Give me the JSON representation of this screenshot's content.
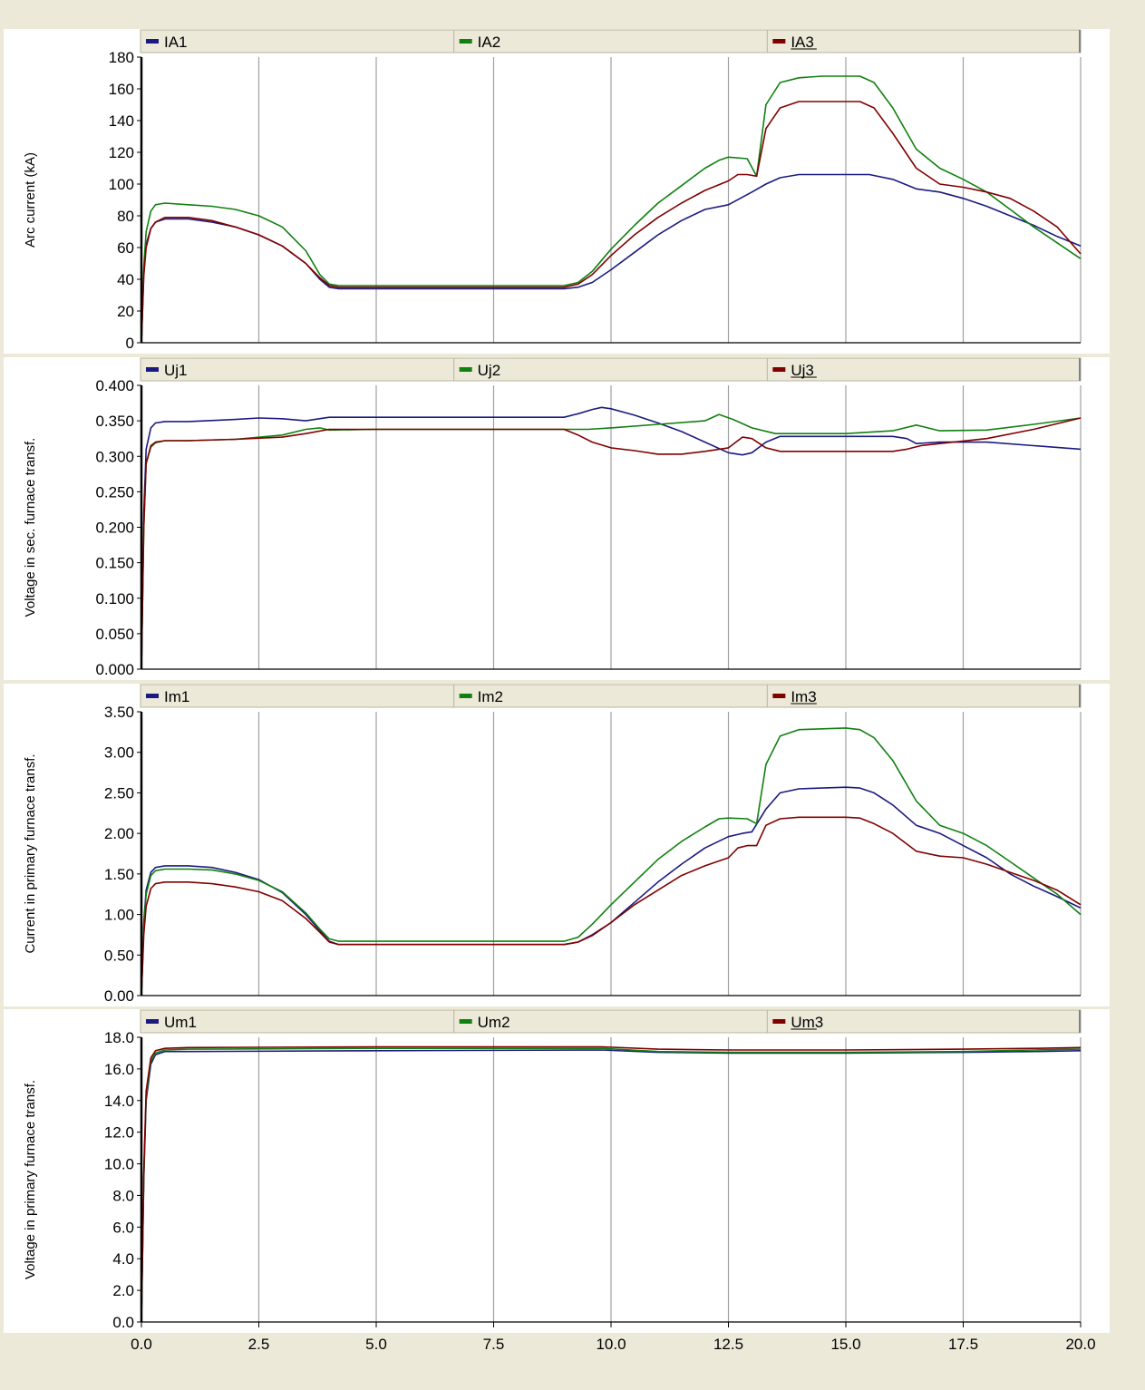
{
  "colors": {
    "background": "#ece9d8",
    "plot_background": "#ffffff",
    "grid": "#a0a0a0",
    "series_1": "#1a1a80",
    "series_2": "#108010",
    "series_3": "#800000"
  },
  "chart_data": [
    {
      "type": "line",
      "ylabel": "Arc current (kA)",
      "xlim": [
        0,
        20
      ],
      "x_ticks": [
        "0.0",
        "2.5",
        "5.0",
        "7.5",
        "10.0",
        "12.5",
        "15.0",
        "17.5",
        "20.0"
      ],
      "x_tick_values": [
        0,
        2.5,
        5,
        7.5,
        10,
        12.5,
        15,
        17.5,
        20
      ],
      "show_x_tick_labels": false,
      "ylim": [
        0,
        180
      ],
      "y_ticks": [
        "0",
        "20",
        "40",
        "60",
        "80",
        "100",
        "120",
        "140",
        "160",
        "180"
      ],
      "y_tick_values": [
        0,
        20,
        40,
        60,
        80,
        100,
        120,
        140,
        160,
        180
      ],
      "grid": true,
      "legend_position": "top",
      "series": [
        {
          "name": "IA1",
          "color": "#1a1a80",
          "x": [
            0,
            0.05,
            0.1,
            0.2,
            0.3,
            0.5,
            1,
            1.5,
            2,
            2.5,
            3,
            3.5,
            3.8,
            4,
            4.2,
            5,
            7.5,
            9,
            9.3,
            9.6,
            10,
            10.5,
            11,
            11.5,
            12,
            12.5,
            13,
            13.3,
            13.6,
            14,
            14.5,
            15,
            15.5,
            16,
            16.5,
            17,
            17.5,
            18,
            18.5,
            19,
            19.5,
            20
          ],
          "y": [
            0,
            45,
            62,
            72,
            76,
            78,
            78,
            76,
            73,
            68,
            61,
            50,
            40,
            35,
            34,
            34,
            34,
            34,
            35,
            38,
            46,
            57,
            68,
            77,
            84,
            87,
            95,
            100,
            104,
            106,
            106,
            106,
            106,
            103,
            97,
            95,
            91,
            86,
            80,
            74,
            67,
            61
          ]
        },
        {
          "name": "IA2",
          "color": "#108010",
          "x": [
            0,
            0.05,
            0.1,
            0.2,
            0.3,
            0.5,
            1,
            1.5,
            2,
            2.5,
            3,
            3.5,
            3.8,
            4,
            4.2,
            5,
            7.5,
            9,
            9.3,
            9.6,
            10,
            10.5,
            11,
            11.5,
            12,
            12.3,
            12.5,
            12.9,
            13.1,
            13.3,
            13.6,
            14,
            14.5,
            15,
            15.3,
            15.6,
            16,
            16.5,
            17,
            17.5,
            18,
            18.5,
            19,
            19.5,
            20
          ],
          "y": [
            0,
            48,
            70,
            83,
            87,
            88,
            87,
            86,
            84,
            80,
            73,
            58,
            43,
            37,
            36,
            36,
            36,
            36,
            38,
            45,
            59,
            74,
            88,
            99,
            110,
            115,
            117,
            116,
            105,
            150,
            164,
            167,
            168,
            168,
            168,
            164,
            148,
            122,
            110,
            103,
            95,
            84,
            73,
            63,
            53
          ]
        },
        {
          "name": "IA3",
          "color": "#800000",
          "x": [
            0,
            0.05,
            0.1,
            0.2,
            0.3,
            0.5,
            1,
            1.5,
            2,
            2.5,
            3,
            3.5,
            3.8,
            4,
            4.2,
            5,
            7.5,
            9,
            9.3,
            9.6,
            10,
            10.5,
            11,
            11.5,
            12,
            12.5,
            12.7,
            12.9,
            13.1,
            13.3,
            13.6,
            14,
            14.5,
            15,
            15.3,
            15.6,
            16,
            16.5,
            17,
            17.5,
            18,
            18.5,
            19,
            19.5,
            20
          ],
          "y": [
            0,
            42,
            60,
            72,
            76,
            79,
            79,
            77,
            73,
            68,
            61,
            50,
            41,
            36,
            35,
            35,
            35,
            35,
            37,
            43,
            55,
            68,
            79,
            88,
            96,
            102,
            106,
            106,
            105,
            135,
            148,
            152,
            152,
            152,
            152,
            148,
            132,
            110,
            100,
            98,
            95,
            91,
            83,
            73,
            56
          ]
        }
      ]
    },
    {
      "type": "line",
      "ylabel": "Voltage in sec. furnace transf.",
      "xlim": [
        0,
        20
      ],
      "x_ticks": [
        "0.0",
        "2.5",
        "5.0",
        "7.5",
        "10.0",
        "12.5",
        "15.0",
        "17.5",
        "20.0"
      ],
      "x_tick_values": [
        0,
        2.5,
        5,
        7.5,
        10,
        12.5,
        15,
        17.5,
        20
      ],
      "show_x_tick_labels": false,
      "ylim": [
        0,
        0.4
      ],
      "y_ticks": [
        "0.000",
        "0.050",
        "0.100",
        "0.150",
        "0.200",
        "0.250",
        "0.300",
        "0.350",
        "0.400"
      ],
      "y_tick_values": [
        0,
        0.05,
        0.1,
        0.15,
        0.2,
        0.25,
        0.3,
        0.35,
        0.4
      ],
      "grid": true,
      "legend_position": "top",
      "series": [
        {
          "name": "Uj1",
          "color": "#1a1a80",
          "x": [
            0,
            0.05,
            0.1,
            0.2,
            0.3,
            0.5,
            1,
            2,
            2.5,
            3,
            3.5,
            4,
            5,
            7.5,
            9,
            9.3,
            9.6,
            9.8,
            10,
            10.5,
            11,
            11.5,
            12,
            12.5,
            12.8,
            13,
            13.3,
            13.6,
            14,
            15,
            16,
            16.3,
            16.5,
            17,
            18,
            19,
            20
          ],
          "y": [
            0,
            0.22,
            0.31,
            0.34,
            0.347,
            0.349,
            0.349,
            0.352,
            0.354,
            0.353,
            0.35,
            0.355,
            0.355,
            0.355,
            0.355,
            0.36,
            0.366,
            0.369,
            0.367,
            0.358,
            0.347,
            0.335,
            0.32,
            0.305,
            0.302,
            0.305,
            0.32,
            0.328,
            0.328,
            0.328,
            0.328,
            0.325,
            0.318,
            0.32,
            0.32,
            0.315,
            0.31
          ]
        },
        {
          "name": "Uj2",
          "color": "#108010",
          "x": [
            0,
            0.05,
            0.1,
            0.2,
            0.3,
            0.5,
            1,
            2,
            3,
            3.5,
            3.8,
            4,
            5,
            7.5,
            9,
            9.5,
            10,
            11,
            12,
            12.3,
            12.6,
            13,
            13.5,
            14,
            15,
            16,
            16.5,
            17,
            18,
            19,
            20
          ],
          "y": [
            0,
            0.2,
            0.29,
            0.313,
            0.319,
            0.322,
            0.322,
            0.324,
            0.33,
            0.338,
            0.34,
            0.337,
            0.338,
            0.338,
            0.338,
            0.338,
            0.34,
            0.345,
            0.35,
            0.359,
            0.352,
            0.34,
            0.332,
            0.332,
            0.332,
            0.336,
            0.344,
            0.336,
            0.337,
            0.345,
            0.354
          ]
        },
        {
          "name": "Uj3",
          "color": "#800000",
          "x": [
            0,
            0.05,
            0.1,
            0.2,
            0.3,
            0.5,
            1,
            2,
            3,
            3.5,
            4,
            5,
            7.5,
            9,
            9.3,
            9.6,
            10,
            10.5,
            11,
            11.5,
            12,
            12.5,
            12.8,
            13,
            13.3,
            13.6,
            14,
            15,
            16,
            16.3,
            16.6,
            17,
            18,
            19,
            20
          ],
          "y": [
            0,
            0.2,
            0.29,
            0.315,
            0.32,
            0.322,
            0.322,
            0.324,
            0.327,
            0.332,
            0.338,
            0.338,
            0.338,
            0.338,
            0.33,
            0.32,
            0.312,
            0.308,
            0.303,
            0.303,
            0.307,
            0.312,
            0.327,
            0.325,
            0.312,
            0.307,
            0.307,
            0.307,
            0.307,
            0.31,
            0.315,
            0.318,
            0.325,
            0.338,
            0.354
          ]
        }
      ]
    },
    {
      "type": "line",
      "ylabel": "Current in primary furnace transf.",
      "xlim": [
        0,
        20
      ],
      "x_ticks": [
        "0.0",
        "2.5",
        "5.0",
        "7.5",
        "10.0",
        "12.5",
        "15.0",
        "17.5",
        "20.0"
      ],
      "x_tick_values": [
        0,
        2.5,
        5,
        7.5,
        10,
        12.5,
        15,
        17.5,
        20
      ],
      "show_x_tick_labels": false,
      "ylim": [
        0,
        3.5
      ],
      "y_ticks": [
        "0.00",
        "0.50",
        "1.00",
        "1.50",
        "2.00",
        "2.50",
        "3.00",
        "3.50"
      ],
      "y_tick_values": [
        0,
        0.5,
        1,
        1.5,
        2,
        2.5,
        3,
        3.5
      ],
      "grid": true,
      "legend_position": "top",
      "series": [
        {
          "name": "Im1",
          "color": "#1a1a80",
          "x": [
            0,
            0.05,
            0.1,
            0.2,
            0.3,
            0.5,
            1,
            1.5,
            2,
            2.5,
            3,
            3.5,
            3.8,
            4,
            4.2,
            5,
            7.5,
            9,
            9.3,
            9.6,
            10,
            10.5,
            11,
            11.5,
            12,
            12.5,
            12.8,
            13,
            13.3,
            13.6,
            14,
            15,
            15.3,
            15.6,
            16,
            16.5,
            17,
            17.5,
            18,
            18.5,
            19,
            19.5,
            20
          ],
          "y": [
            0,
            0.9,
            1.3,
            1.52,
            1.58,
            1.6,
            1.6,
            1.58,
            1.52,
            1.43,
            1.27,
            1.0,
            0.8,
            0.67,
            0.63,
            0.63,
            0.63,
            0.63,
            0.66,
            0.75,
            0.9,
            1.15,
            1.4,
            1.62,
            1.82,
            1.96,
            2.0,
            2.02,
            2.3,
            2.5,
            2.55,
            2.57,
            2.56,
            2.5,
            2.35,
            2.1,
            2.0,
            1.85,
            1.7,
            1.5,
            1.35,
            1.22,
            1.08
          ]
        },
        {
          "name": "Im2",
          "color": "#108010",
          "x": [
            0,
            0.05,
            0.1,
            0.2,
            0.3,
            0.5,
            1,
            1.5,
            2,
            2.5,
            3,
            3.5,
            3.8,
            4,
            4.2,
            5,
            7.5,
            9,
            9.3,
            9.6,
            10,
            10.5,
            11,
            11.5,
            12,
            12.3,
            12.5,
            12.9,
            13.1,
            13.3,
            13.6,
            14,
            15,
            15.3,
            15.6,
            16,
            16.5,
            17,
            17.5,
            18,
            18.5,
            19,
            19.5,
            20
          ],
          "y": [
            0,
            0.85,
            1.25,
            1.48,
            1.54,
            1.56,
            1.56,
            1.55,
            1.5,
            1.42,
            1.28,
            1.02,
            0.82,
            0.7,
            0.67,
            0.67,
            0.67,
            0.67,
            0.72,
            0.88,
            1.12,
            1.4,
            1.68,
            1.9,
            2.08,
            2.18,
            2.19,
            2.18,
            2.12,
            2.85,
            3.2,
            3.28,
            3.3,
            3.28,
            3.18,
            2.9,
            2.4,
            2.1,
            2.0,
            1.85,
            1.65,
            1.45,
            1.25,
            1.0
          ]
        },
        {
          "name": "Im3",
          "color": "#800000",
          "x": [
            0,
            0.05,
            0.1,
            0.2,
            0.3,
            0.5,
            1,
            1.5,
            2,
            2.5,
            3,
            3.5,
            3.8,
            4,
            4.2,
            5,
            7.5,
            9,
            9.3,
            9.6,
            10,
            10.5,
            11,
            11.5,
            12,
            12.5,
            12.7,
            12.9,
            13.1,
            13.3,
            13.6,
            14,
            15,
            15.3,
            15.6,
            16,
            16.5,
            17,
            17.5,
            18,
            18.5,
            19,
            19.5,
            20
          ],
          "y": [
            0,
            0.75,
            1.1,
            1.32,
            1.38,
            1.4,
            1.4,
            1.38,
            1.34,
            1.28,
            1.17,
            0.95,
            0.78,
            0.66,
            0.63,
            0.63,
            0.63,
            0.63,
            0.66,
            0.74,
            0.9,
            1.12,
            1.3,
            1.48,
            1.6,
            1.7,
            1.82,
            1.85,
            1.85,
            2.1,
            2.18,
            2.2,
            2.2,
            2.19,
            2.12,
            2.0,
            1.78,
            1.72,
            1.7,
            1.62,
            1.52,
            1.42,
            1.3,
            1.12
          ]
        }
      ]
    },
    {
      "type": "line",
      "ylabel": "Voltage in primary furnace transf.",
      "xlim": [
        0,
        20
      ],
      "x_ticks": [
        "0.0",
        "2.5",
        "5.0",
        "7.5",
        "10.0",
        "12.5",
        "15.0",
        "17.5",
        "20.0"
      ],
      "x_tick_values": [
        0,
        2.5,
        5,
        7.5,
        10,
        12.5,
        15,
        17.5,
        20
      ],
      "show_x_tick_labels": true,
      "ylim": [
        0,
        18
      ],
      "y_ticks": [
        "0.0",
        "2.0",
        "4.0",
        "6.0",
        "8.0",
        "10.0",
        "12.0",
        "14.0",
        "16.0",
        "18.0"
      ],
      "y_tick_values": [
        0,
        2,
        4,
        6,
        8,
        10,
        12,
        14,
        16,
        18
      ],
      "grid": true,
      "legend_position": "top",
      "series": [
        {
          "name": "Um1",
          "color": "#1a1a80",
          "x": [
            0,
            0.05,
            0.1,
            0.2,
            0.3,
            0.5,
            1,
            5,
            9.8,
            11,
            12.5,
            15,
            17.5,
            19,
            20
          ],
          "y": [
            0,
            9,
            14,
            16.3,
            16.9,
            17.1,
            17.1,
            17.15,
            17.2,
            17.05,
            17.0,
            17.0,
            17.05,
            17.1,
            17.15
          ]
        },
        {
          "name": "Um2",
          "color": "#108010",
          "x": [
            0,
            0.05,
            0.1,
            0.2,
            0.3,
            0.5,
            1,
            5,
            9.8,
            11,
            12.5,
            15,
            17.5,
            19,
            20
          ],
          "y": [
            0,
            9.2,
            14.3,
            16.5,
            17.0,
            17.2,
            17.25,
            17.3,
            17.3,
            17.1,
            17.05,
            17.05,
            17.1,
            17.2,
            17.25
          ]
        },
        {
          "name": "Um3",
          "color": "#800000",
          "x": [
            0,
            0.05,
            0.1,
            0.2,
            0.3,
            0.5,
            1,
            5,
            9.8,
            11,
            12.5,
            15,
            17.5,
            19,
            20
          ],
          "y": [
            0,
            9.5,
            14.6,
            16.7,
            17.15,
            17.3,
            17.35,
            17.4,
            17.4,
            17.25,
            17.2,
            17.2,
            17.25,
            17.3,
            17.35
          ]
        }
      ]
    }
  ]
}
